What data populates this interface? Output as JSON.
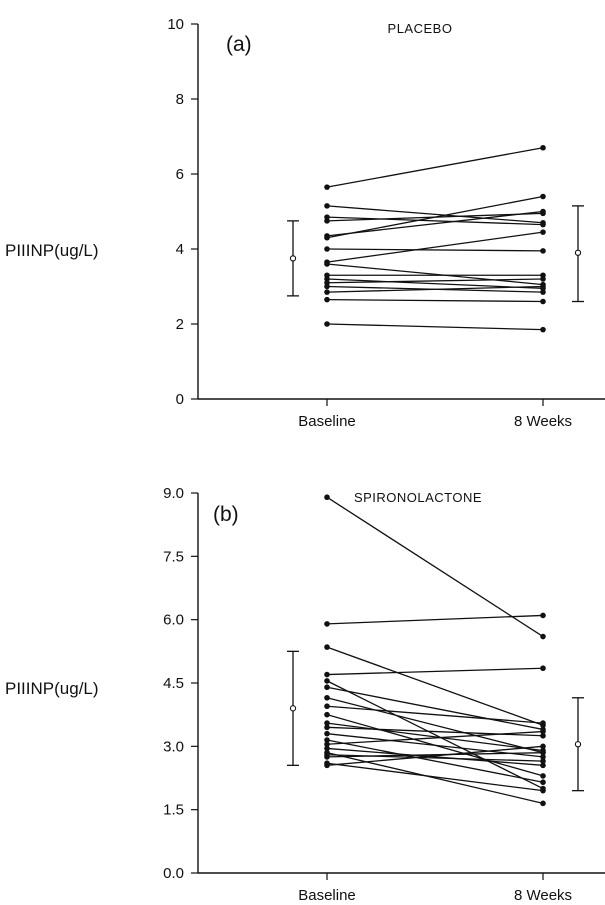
{
  "chart_data": [
    {
      "type": "line",
      "panel": "(a)",
      "title": "PLACEBO",
      "ylabel": "PIIINP(ug/L)",
      "xlabel": "",
      "ylim": [
        0,
        10
      ],
      "yticks": [
        "0",
        "2",
        "4",
        "6",
        "8",
        "10"
      ],
      "categories": [
        "Baseline",
        "8 Weeks"
      ],
      "grid": false,
      "series": [
        {
          "values": [
            5.65,
            6.7
          ]
        },
        {
          "values": [
            5.15,
            4.7
          ]
        },
        {
          "values": [
            4.85,
            4.65
          ]
        },
        {
          "values": [
            4.75,
            4.95
          ]
        },
        {
          "values": [
            4.35,
            5.0
          ]
        },
        {
          "values": [
            4.3,
            5.4
          ]
        },
        {
          "values": [
            4.0,
            3.95
          ]
        },
        {
          "values": [
            3.65,
            4.45
          ]
        },
        {
          "values": [
            3.6,
            3.05
          ]
        },
        {
          "values": [
            3.3,
            3.3
          ]
        },
        {
          "values": [
            3.2,
            2.95
          ]
        },
        {
          "values": [
            3.1,
            3.2
          ]
        },
        {
          "values": [
            3.0,
            2.85
          ]
        },
        {
          "values": [
            2.85,
            3.0
          ]
        },
        {
          "values": [
            2.65,
            2.6
          ]
        },
        {
          "values": [
            2.0,
            1.85
          ]
        }
      ],
      "summary": {
        "Baseline": {
          "mean": 3.75,
          "low": 2.75,
          "high": 4.75
        },
        "8 Weeks": {
          "mean": 3.9,
          "low": 2.6,
          "high": 5.15
        }
      }
    },
    {
      "type": "line",
      "panel": "(b)",
      "title": "SPIRONOLACTONE",
      "ylabel": "PIIINP(ug/L)",
      "xlabel": "",
      "ylim": [
        0,
        9.0
      ],
      "yticks": [
        "0.0",
        "1.5",
        "3.0",
        "4.5",
        "6.0",
        "7.5",
        "9.0"
      ],
      "categories": [
        "Baseline",
        "8 Weeks"
      ],
      "grid": false,
      "series": [
        {
          "values": [
            8.9,
            5.6
          ]
        },
        {
          "values": [
            5.9,
            6.1
          ]
        },
        {
          "values": [
            5.35,
            3.5
          ]
        },
        {
          "values": [
            4.7,
            4.85
          ]
        },
        {
          "values": [
            4.55,
            2.0
          ]
        },
        {
          "values": [
            4.4,
            3.4
          ]
        },
        {
          "values": [
            4.15,
            2.85
          ]
        },
        {
          "values": [
            3.95,
            3.55
          ]
        },
        {
          "values": [
            3.75,
            2.3
          ]
        },
        {
          "values": [
            3.55,
            2.9
          ]
        },
        {
          "values": [
            3.45,
            3.25
          ]
        },
        {
          "values": [
            3.3,
            2.75
          ]
        },
        {
          "values": [
            3.15,
            2.15
          ]
        },
        {
          "values": [
            3.05,
            3.35
          ]
        },
        {
          "values": [
            2.95,
            2.55
          ]
        },
        {
          "values": [
            2.85,
            1.65
          ]
        },
        {
          "values": [
            2.8,
            2.65
          ]
        },
        {
          "values": [
            2.75,
            2.85
          ]
        },
        {
          "values": [
            2.6,
            1.95
          ]
        },
        {
          "values": [
            2.55,
            3.0
          ]
        }
      ],
      "summary": {
        "Baseline": {
          "mean": 3.9,
          "low": 2.55,
          "high": 5.25
        },
        "8 Weeks": {
          "mean": 3.05,
          "low": 1.95,
          "high": 4.15
        }
      }
    }
  ]
}
